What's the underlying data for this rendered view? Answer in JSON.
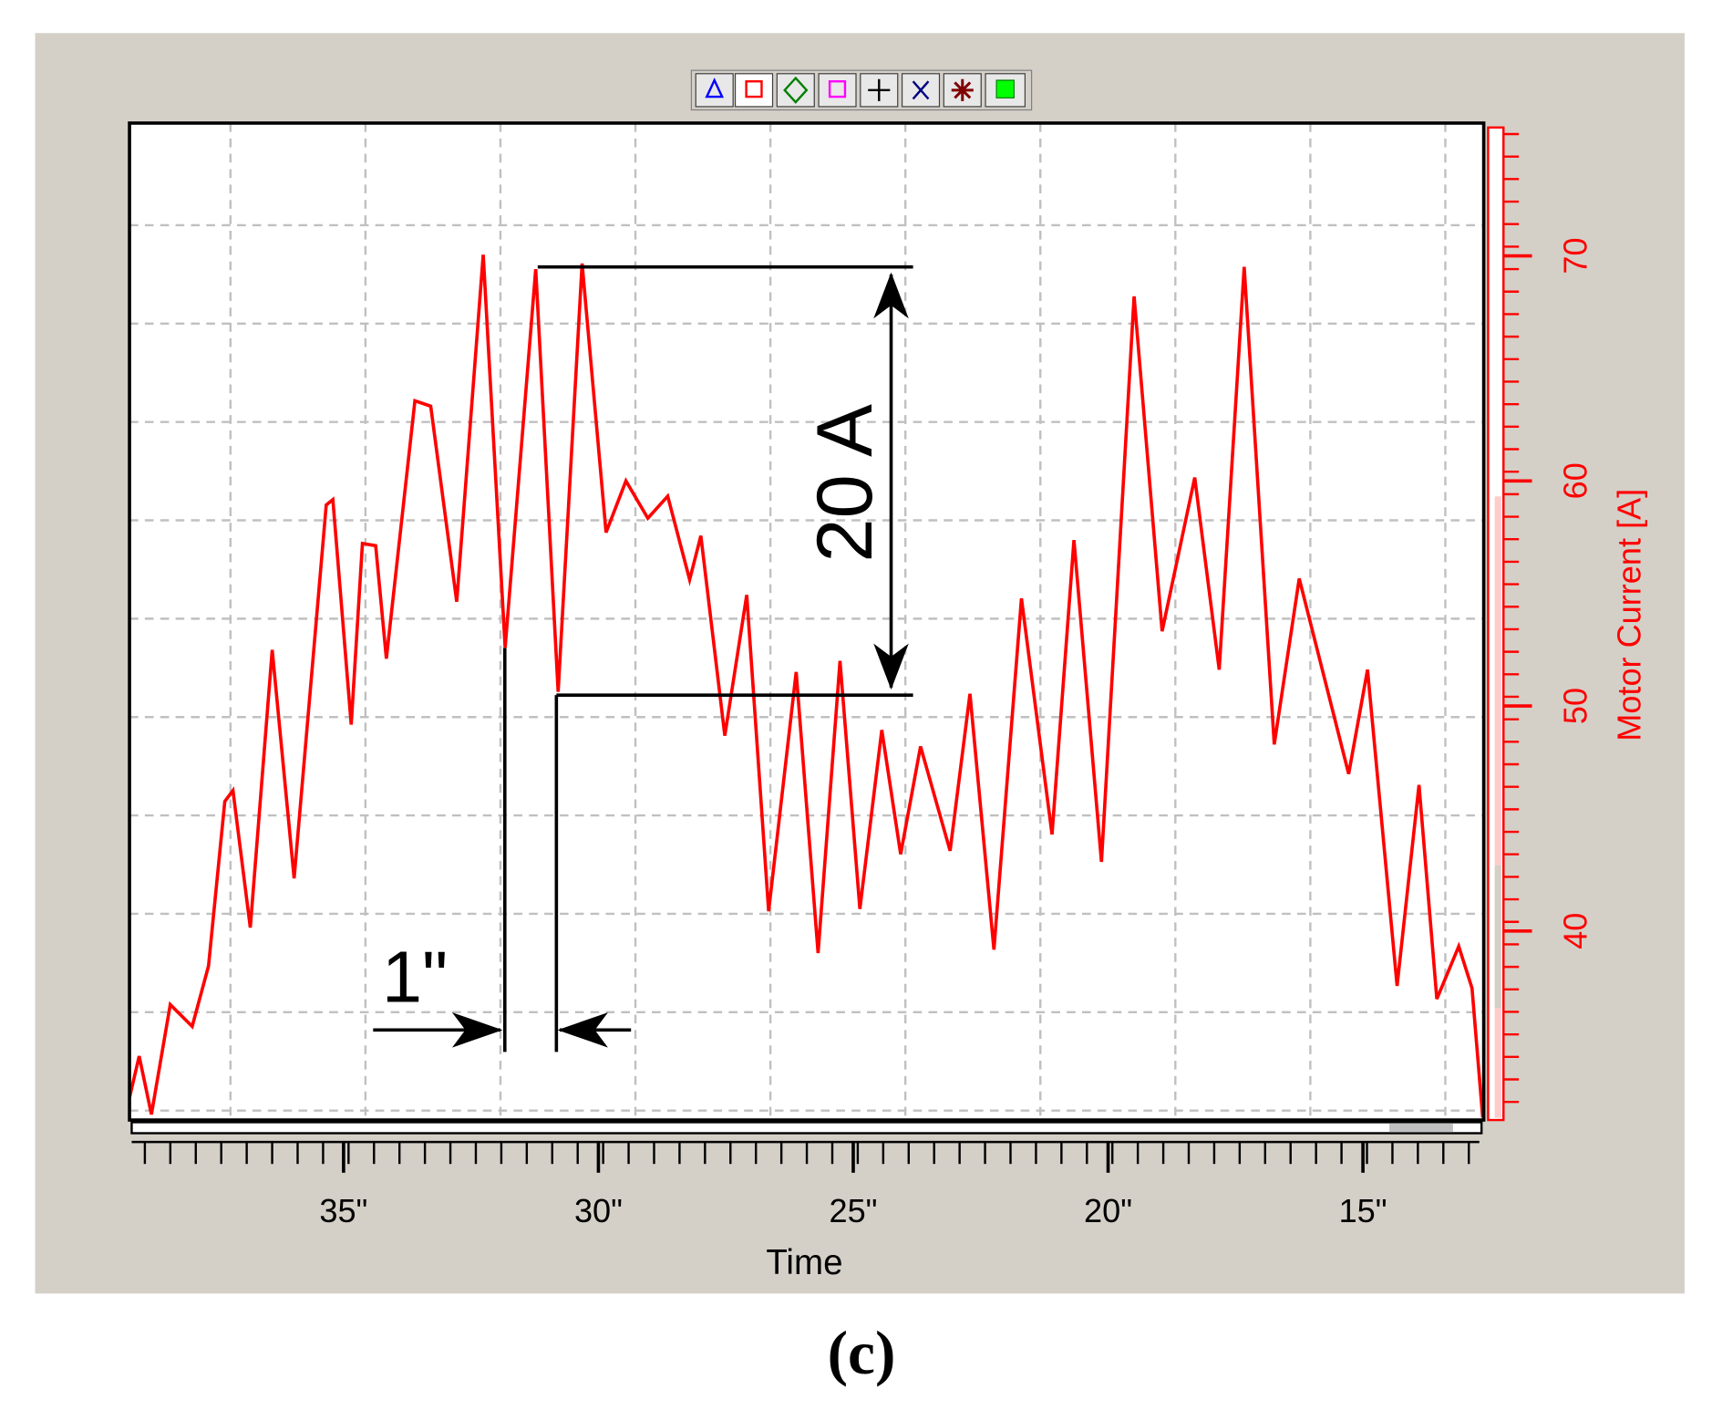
{
  "chart_data": {
    "type": "line",
    "xlabel": "Time",
    "ylabel": "Motor Current [A]",
    "y_axis_side": "right",
    "grid": true,
    "x": [
      39.2,
      39.01,
      38.77,
      38.4,
      37.97,
      37.65,
      37.33,
      37.17,
      36.83,
      36.4,
      35.97,
      35.34,
      35.21,
      34.85,
      34.63,
      34.37,
      34.16,
      33.6,
      33.29,
      32.78,
      32.26,
      31.83,
      31.23,
      30.79,
      30.32,
      29.85,
      29.46,
      29.03,
      28.64,
      28.21,
      27.99,
      27.52,
      27.09,
      26.66,
      26.12,
      25.69,
      25.26,
      24.87,
      24.44,
      24.07,
      23.68,
      23.1,
      22.71,
      22.24,
      21.7,
      21.1,
      20.67,
      20.13,
      19.49,
      18.94,
      18.3,
      17.82,
      17.33,
      16.74,
      16.25,
      15.28,
      14.91,
      14.33,
      13.9,
      13.55,
      13.12,
      12.86,
      12.65
    ],
    "series": [
      {
        "color": "#ff0000",
        "values": [
          32.59,
          34.44,
          31.85,
          36.73,
          35.76,
          38.44,
          45.76,
          46.24,
          40.15,
          52.49,
          42.34,
          58.93,
          59.17,
          49.17,
          57.22,
          57.12,
          52.1,
          63.56,
          63.32,
          54.63,
          70.05,
          52.59,
          69.41,
          50.63,
          69.66,
          57.71,
          60.0,
          58.34,
          59.32,
          55.61,
          57.56,
          48.68,
          54.93,
          40.88,
          51.51,
          39.02,
          52.0,
          40.98,
          48.93,
          43.41,
          48.2,
          43.56,
          50.54,
          39.17,
          54.78,
          44.29,
          57.37,
          43.07,
          68.2,
          53.32,
          60.15,
          51.61,
          69.51,
          48.29,
          55.66,
          46.98,
          51.61,
          37.56,
          46.49,
          36.98,
          39.32,
          37.46,
          31.71
        ]
      }
    ],
    "xlim": [
      39.2,
      12.63
    ],
    "xticks": [
      {
        "value": 35,
        "label": "35\""
      },
      {
        "value": 30,
        "label": "30\""
      },
      {
        "value": 25,
        "label": "25\""
      },
      {
        "value": 20,
        "label": "20\""
      },
      {
        "value": 15,
        "label": "15\""
      }
    ],
    "ylim": [
      31.6,
      75.9
    ],
    "yticks": [
      40,
      50,
      60,
      70
    ],
    "annotations": [
      "20 A",
      "1\""
    ],
    "caption": "(c)"
  }
}
